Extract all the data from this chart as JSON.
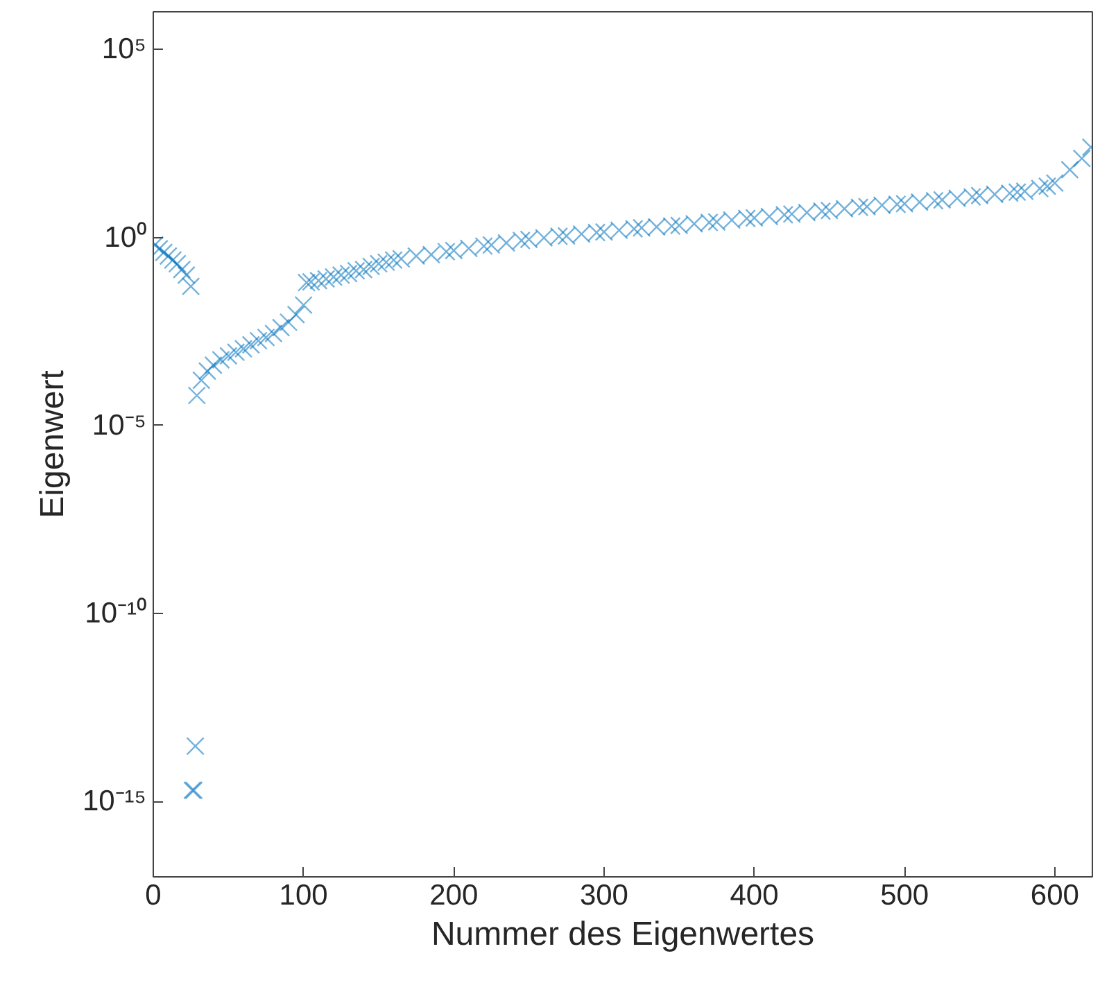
{
  "chart_data": {
    "type": "scatter",
    "xlabel": "Nummer des Eigenwertes",
    "ylabel": "Eigenwert",
    "log": "y",
    "grid": false,
    "marker": "cross",
    "xlim": [
      0,
      625
    ],
    "xticks": [
      0,
      100,
      200,
      300,
      400,
      500,
      600
    ],
    "ylim": [
      1e-17,
      1000000.0
    ],
    "yticks": [
      {
        "value": 1e-15,
        "label": "10⁻¹⁵"
      },
      {
        "value": 1e-10,
        "label": "10⁻¹⁰"
      },
      {
        "value": 1e-05,
        "label": "10⁻⁵"
      },
      {
        "value": 1,
        "label": "10⁰"
      },
      {
        "value": 100000.0,
        "label": "10⁵"
      }
    ],
    "series": [
      {
        "color": "#0072bd",
        "x": [
          1,
          4,
          7,
          10,
          13,
          16,
          19,
          22,
          25,
          26,
          27,
          28,
          29,
          32,
          36,
          40,
          45,
          50,
          55,
          60,
          65,
          70,
          75,
          80,
          85,
          90,
          95,
          100,
          102,
          110,
          120,
          130,
          140,
          150,
          160,
          175,
          200,
          225,
          250,
          275,
          300,
          325,
          350,
          375,
          400,
          425,
          450,
          475,
          500,
          525,
          550,
          575,
          590,
          600,
          610,
          618,
          624,
          105,
          115,
          125,
          135,
          145,
          155,
          165,
          185,
          195,
          210,
          220,
          235,
          245,
          260,
          270,
          285,
          295,
          310,
          320,
          335,
          345,
          360,
          370,
          385,
          395,
          410,
          420,
          435,
          445,
          460,
          470,
          485,
          495,
          510,
          520,
          535,
          545,
          560,
          570,
          580,
          595
        ],
        "values": [
          0.63,
          0.5,
          0.4,
          0.32,
          0.25,
          0.2,
          0.14,
          0.1,
          0.05,
          2e-15,
          2e-15,
          3e-14,
          6.3e-05,
          0.00016,
          0.00028,
          0.0004,
          0.00056,
          0.00071,
          0.00089,
          0.0011,
          0.0014,
          0.0018,
          0.0022,
          0.0028,
          0.004,
          0.0056,
          0.0089,
          0.016,
          0.063,
          0.071,
          0.089,
          0.11,
          0.14,
          0.2,
          0.25,
          0.32,
          0.45,
          0.63,
          0.89,
          1.1,
          1.4,
          1.8,
          2.1,
          2.6,
          3.3,
          4.2,
          5.2,
          6.6,
          7.9,
          10,
          13,
          16,
          20,
          28,
          63,
          126,
          250,
          0.066,
          0.079,
          0.1,
          0.13,
          0.17,
          0.22,
          0.27,
          0.35,
          0.42,
          0.51,
          0.59,
          0.72,
          0.83,
          0.98,
          1.07,
          1.23,
          1.35,
          1.55,
          1.7,
          1.9,
          2.0,
          2.3,
          2.5,
          2.9,
          3.2,
          3.6,
          4.0,
          4.6,
          5.0,
          5.8,
          6.3,
          7.2,
          7.6,
          8.7,
          9.5,
          11,
          12,
          14,
          15,
          17,
          23
        ]
      }
    ]
  }
}
